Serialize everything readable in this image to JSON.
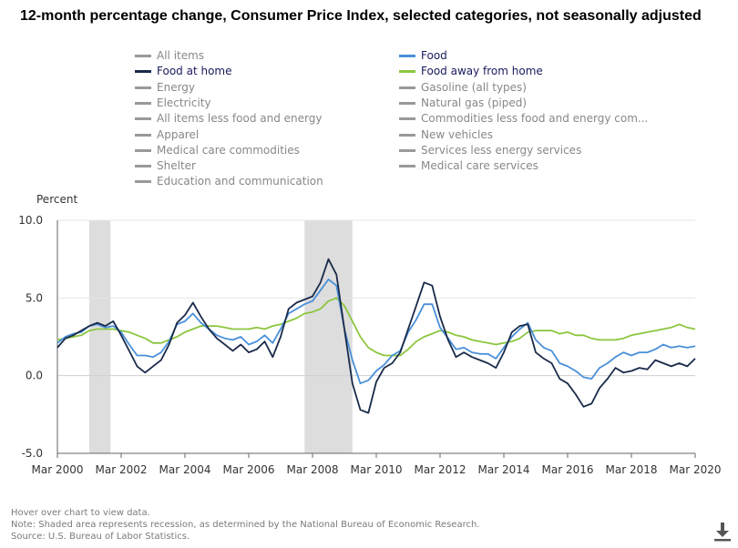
{
  "chart_data": {
    "type": "line",
    "title": "12-month percentage change, Consumer Price Index, selected categories, not seasonally adjusted",
    "ylabel": "Percent",
    "ylim": [
      -5,
      10
    ],
    "yticks": [
      "10.0",
      "5.0",
      "0.0",
      "-5.0"
    ],
    "xlim": [
      "2000-03",
      "2020-03"
    ],
    "xticks": [
      "Mar 2000",
      "Mar 2002",
      "Mar 2004",
      "Mar 2006",
      "Mar 2008",
      "Mar 2010",
      "Mar 2012",
      "Mar 2014",
      "Mar 2016",
      "Mar 2018",
      "Mar 2020"
    ],
    "grid": "horizontal",
    "legend_position": "top",
    "recessions": [
      {
        "start": "2001-03",
        "end": "2001-11"
      },
      {
        "start": "2007-12",
        "end": "2009-06"
      }
    ],
    "legend": [
      {
        "name": "All items",
        "active": false,
        "color": "#999999",
        "col": 0
      },
      {
        "name": "Food",
        "active": true,
        "color": "#4a90d9",
        "col": 1
      },
      {
        "name": "Food at home",
        "active": true,
        "color": "#1a2a4a",
        "col": 0
      },
      {
        "name": "Food away from home",
        "active": true,
        "color": "#8cc63f",
        "col": 1
      },
      {
        "name": "Energy",
        "active": false,
        "color": "#999999",
        "col": 0
      },
      {
        "name": "Gasoline (all types)",
        "active": false,
        "color": "#999999",
        "col": 1
      },
      {
        "name": "Electricity",
        "active": false,
        "color": "#999999",
        "col": 0
      },
      {
        "name": "Natural gas (piped)",
        "active": false,
        "color": "#999999",
        "col": 1
      },
      {
        "name": "All items less food and energy",
        "active": false,
        "color": "#999999",
        "col": 0
      },
      {
        "name": "Commodities less food and energy com...",
        "active": false,
        "color": "#999999",
        "col": 1
      },
      {
        "name": "Apparel",
        "active": false,
        "color": "#999999",
        "col": 0
      },
      {
        "name": "New vehicles",
        "active": false,
        "color": "#999999",
        "col": 1
      },
      {
        "name": "Medical care commodities",
        "active": false,
        "color": "#999999",
        "col": 0
      },
      {
        "name": "Services less energy services",
        "active": false,
        "color": "#999999",
        "col": 1
      },
      {
        "name": "Shelter",
        "active": false,
        "color": "#999999",
        "col": 0
      },
      {
        "name": "Medical care services",
        "active": false,
        "color": "#999999",
        "col": 1
      },
      {
        "name": "Education and communication",
        "active": false,
        "color": "#999999",
        "col": 0
      }
    ],
    "series": [
      {
        "name": "Food at home",
        "color": "#1a2a4a",
        "points": [
          [
            "2000-03",
            1.8
          ],
          [
            "2000-06",
            2.4
          ],
          [
            "2000-09",
            2.6
          ],
          [
            "2000-12",
            2.9
          ],
          [
            "2001-03",
            3.2
          ],
          [
            "2001-06",
            3.4
          ],
          [
            "2001-09",
            3.2
          ],
          [
            "2001-12",
            3.5
          ],
          [
            "2002-03",
            2.6
          ],
          [
            "2002-06",
            1.6
          ],
          [
            "2002-09",
            0.6
          ],
          [
            "2002-12",
            0.2
          ],
          [
            "2003-03",
            0.6
          ],
          [
            "2003-06",
            1.0
          ],
          [
            "2003-09",
            2.0
          ],
          [
            "2003-12",
            3.4
          ],
          [
            "2004-03",
            3.9
          ],
          [
            "2004-06",
            4.7
          ],
          [
            "2004-09",
            3.8
          ],
          [
            "2004-12",
            3.0
          ],
          [
            "2005-03",
            2.4
          ],
          [
            "2005-06",
            2.0
          ],
          [
            "2005-09",
            1.6
          ],
          [
            "2005-12",
            2.0
          ],
          [
            "2006-03",
            1.5
          ],
          [
            "2006-06",
            1.7
          ],
          [
            "2006-09",
            2.2
          ],
          [
            "2006-12",
            1.2
          ],
          [
            "2007-03",
            2.5
          ],
          [
            "2007-06",
            4.3
          ],
          [
            "2007-09",
            4.7
          ],
          [
            "2007-12",
            4.9
          ],
          [
            "2008-03",
            5.1
          ],
          [
            "2008-06",
            6.0
          ],
          [
            "2008-09",
            7.5
          ],
          [
            "2008-12",
            6.5
          ],
          [
            "2009-03",
            3.0
          ],
          [
            "2009-06",
            -0.5
          ],
          [
            "2009-09",
            -2.2
          ],
          [
            "2009-12",
            -2.4
          ],
          [
            "2010-03",
            -0.4
          ],
          [
            "2010-06",
            0.5
          ],
          [
            "2010-09",
            0.8
          ],
          [
            "2010-12",
            1.5
          ],
          [
            "2011-03",
            3.0
          ],
          [
            "2011-06",
            4.5
          ],
          [
            "2011-09",
            6.0
          ],
          [
            "2011-12",
            5.8
          ],
          [
            "2012-03",
            3.8
          ],
          [
            "2012-06",
            2.3
          ],
          [
            "2012-09",
            1.2
          ],
          [
            "2012-12",
            1.5
          ],
          [
            "2013-03",
            1.2
          ],
          [
            "2013-06",
            1.0
          ],
          [
            "2013-09",
            0.8
          ],
          [
            "2013-12",
            0.5
          ],
          [
            "2014-03",
            1.5
          ],
          [
            "2014-06",
            2.8
          ],
          [
            "2014-09",
            3.2
          ],
          [
            "2014-12",
            3.3
          ],
          [
            "2015-03",
            1.5
          ],
          [
            "2015-06",
            1.1
          ],
          [
            "2015-09",
            0.8
          ],
          [
            "2015-12",
            -0.2
          ],
          [
            "2016-03",
            -0.5
          ],
          [
            "2016-06",
            -1.2
          ],
          [
            "2016-09",
            -2.0
          ],
          [
            "2016-12",
            -1.8
          ],
          [
            "2017-03",
            -0.8
          ],
          [
            "2017-06",
            -0.2
          ],
          [
            "2017-09",
            0.5
          ],
          [
            "2017-12",
            0.2
          ],
          [
            "2018-03",
            0.3
          ],
          [
            "2018-06",
            0.5
          ],
          [
            "2018-09",
            0.4
          ],
          [
            "2018-12",
            1.0
          ],
          [
            "2019-03",
            0.8
          ],
          [
            "2019-06",
            0.6
          ],
          [
            "2019-09",
            0.8
          ],
          [
            "2019-12",
            0.6
          ],
          [
            "2020-03",
            1.1
          ]
        ]
      },
      {
        "name": "Food",
        "color": "#4a90d9",
        "points": [
          [
            "2000-03",
            2.1
          ],
          [
            "2000-06",
            2.5
          ],
          [
            "2000-09",
            2.7
          ],
          [
            "2000-12",
            2.8
          ],
          [
            "2001-03",
            3.2
          ],
          [
            "2001-06",
            3.3
          ],
          [
            "2001-09",
            3.1
          ],
          [
            "2001-12",
            3.2
          ],
          [
            "2002-03",
            2.8
          ],
          [
            "2002-06",
            2.0
          ],
          [
            "2002-09",
            1.3
          ],
          [
            "2002-12",
            1.3
          ],
          [
            "2003-03",
            1.2
          ],
          [
            "2003-06",
            1.5
          ],
          [
            "2003-09",
            2.2
          ],
          [
            "2003-12",
            3.3
          ],
          [
            "2004-03",
            3.5
          ],
          [
            "2004-06",
            4.0
          ],
          [
            "2004-09",
            3.4
          ],
          [
            "2004-12",
            3.0
          ],
          [
            "2005-03",
            2.6
          ],
          [
            "2005-06",
            2.4
          ],
          [
            "2005-09",
            2.3
          ],
          [
            "2005-12",
            2.5
          ],
          [
            "2006-03",
            2.0
          ],
          [
            "2006-06",
            2.2
          ],
          [
            "2006-09",
            2.6
          ],
          [
            "2006-12",
            2.1
          ],
          [
            "2007-03",
            3.0
          ],
          [
            "2007-06",
            4.0
          ],
          [
            "2007-09",
            4.3
          ],
          [
            "2007-12",
            4.6
          ],
          [
            "2008-03",
            4.8
          ],
          [
            "2008-06",
            5.5
          ],
          [
            "2008-09",
            6.2
          ],
          [
            "2008-12",
            5.8
          ],
          [
            "2009-03",
            3.0
          ],
          [
            "2009-06",
            1.0
          ],
          [
            "2009-09",
            -0.5
          ],
          [
            "2009-12",
            -0.3
          ],
          [
            "2010-03",
            0.3
          ],
          [
            "2010-06",
            0.7
          ],
          [
            "2010-09",
            1.3
          ],
          [
            "2010-12",
            1.6
          ],
          [
            "2011-03",
            2.8
          ],
          [
            "2011-06",
            3.6
          ],
          [
            "2011-09",
            4.6
          ],
          [
            "2011-12",
            4.6
          ],
          [
            "2012-03",
            3.1
          ],
          [
            "2012-06",
            2.4
          ],
          [
            "2012-09",
            1.7
          ],
          [
            "2012-12",
            1.8
          ],
          [
            "2013-03",
            1.5
          ],
          [
            "2013-06",
            1.4
          ],
          [
            "2013-09",
            1.4
          ],
          [
            "2013-12",
            1.1
          ],
          [
            "2014-03",
            1.8
          ],
          [
            "2014-06",
            2.5
          ],
          [
            "2014-09",
            3.0
          ],
          [
            "2014-12",
            3.4
          ],
          [
            "2015-03",
            2.3
          ],
          [
            "2015-06",
            1.8
          ],
          [
            "2015-09",
            1.6
          ],
          [
            "2015-12",
            0.8
          ],
          [
            "2016-03",
            0.6
          ],
          [
            "2016-06",
            0.3
          ],
          [
            "2016-09",
            -0.1
          ],
          [
            "2016-12",
            -0.2
          ],
          [
            "2017-03",
            0.5
          ],
          [
            "2017-06",
            0.8
          ],
          [
            "2017-09",
            1.2
          ],
          [
            "2017-12",
            1.5
          ],
          [
            "2018-03",
            1.3
          ],
          [
            "2018-06",
            1.5
          ],
          [
            "2018-09",
            1.5
          ],
          [
            "2018-12",
            1.7
          ],
          [
            "2019-03",
            2.0
          ],
          [
            "2019-06",
            1.8
          ],
          [
            "2019-09",
            1.9
          ],
          [
            "2019-12",
            1.8
          ],
          [
            "2020-03",
            1.9
          ]
        ]
      },
      {
        "name": "Food away from home",
        "color": "#8cc63f",
        "points": [
          [
            "2000-03",
            2.3
          ],
          [
            "2000-06",
            2.4
          ],
          [
            "2000-09",
            2.5
          ],
          [
            "2000-12",
            2.6
          ],
          [
            "2001-03",
            2.9
          ],
          [
            "2001-06",
            3.0
          ],
          [
            "2001-09",
            3.0
          ],
          [
            "2001-12",
            3.0
          ],
          [
            "2002-03",
            2.9
          ],
          [
            "2002-06",
            2.8
          ],
          [
            "2002-09",
            2.6
          ],
          [
            "2002-12",
            2.4
          ],
          [
            "2003-03",
            2.1
          ],
          [
            "2003-06",
            2.1
          ],
          [
            "2003-09",
            2.3
          ],
          [
            "2003-12",
            2.5
          ],
          [
            "2004-03",
            2.8
          ],
          [
            "2004-06",
            3.0
          ],
          [
            "2004-09",
            3.2
          ],
          [
            "2004-12",
            3.2
          ],
          [
            "2005-03",
            3.2
          ],
          [
            "2005-06",
            3.1
          ],
          [
            "2005-09",
            3.0
          ],
          [
            "2005-12",
            3.0
          ],
          [
            "2006-03",
            3.0
          ],
          [
            "2006-06",
            3.1
          ],
          [
            "2006-09",
            3.0
          ],
          [
            "2006-12",
            3.2
          ],
          [
            "2007-03",
            3.3
          ],
          [
            "2007-06",
            3.5
          ],
          [
            "2007-09",
            3.7
          ],
          [
            "2007-12",
            4.0
          ],
          [
            "2008-03",
            4.1
          ],
          [
            "2008-06",
            4.3
          ],
          [
            "2008-09",
            4.8
          ],
          [
            "2008-12",
            5.0
          ],
          [
            "2009-03",
            4.5
          ],
          [
            "2009-06",
            3.5
          ],
          [
            "2009-09",
            2.5
          ],
          [
            "2009-12",
            1.8
          ],
          [
            "2010-03",
            1.5
          ],
          [
            "2010-06",
            1.3
          ],
          [
            "2010-09",
            1.3
          ],
          [
            "2010-12",
            1.3
          ],
          [
            "2011-03",
            1.7
          ],
          [
            "2011-06",
            2.2
          ],
          [
            "2011-09",
            2.5
          ],
          [
            "2011-12",
            2.7
          ],
          [
            "2012-03",
            2.9
          ],
          [
            "2012-06",
            2.8
          ],
          [
            "2012-09",
            2.6
          ],
          [
            "2012-12",
            2.5
          ],
          [
            "2013-03",
            2.3
          ],
          [
            "2013-06",
            2.2
          ],
          [
            "2013-09",
            2.1
          ],
          [
            "2013-12",
            2.0
          ],
          [
            "2014-03",
            2.1
          ],
          [
            "2014-06",
            2.2
          ],
          [
            "2014-09",
            2.4
          ],
          [
            "2014-12",
            2.8
          ],
          [
            "2015-03",
            2.9
          ],
          [
            "2015-06",
            2.9
          ],
          [
            "2015-09",
            2.9
          ],
          [
            "2015-12",
            2.7
          ],
          [
            "2016-03",
            2.8
          ],
          [
            "2016-06",
            2.6
          ],
          [
            "2016-09",
            2.6
          ],
          [
            "2016-12",
            2.4
          ],
          [
            "2017-03",
            2.3
          ],
          [
            "2017-06",
            2.3
          ],
          [
            "2017-09",
            2.3
          ],
          [
            "2017-12",
            2.4
          ],
          [
            "2018-03",
            2.6
          ],
          [
            "2018-06",
            2.7
          ],
          [
            "2018-09",
            2.8
          ],
          [
            "2018-12",
            2.9
          ],
          [
            "2019-03",
            3.0
          ],
          [
            "2019-06",
            3.1
          ],
          [
            "2019-09",
            3.3
          ],
          [
            "2019-12",
            3.1
          ],
          [
            "2020-03",
            3.0
          ]
        ]
      }
    ]
  },
  "footer": {
    "hover_hint": "Hover over chart to view data.",
    "note": "Note: Shaded area represents recession, as determined by the National Bureau of Economic Research.",
    "source": "Source: U.S. Bureau of Labor Statistics."
  },
  "download": {
    "icon": "download-icon",
    "color": "#555555"
  }
}
